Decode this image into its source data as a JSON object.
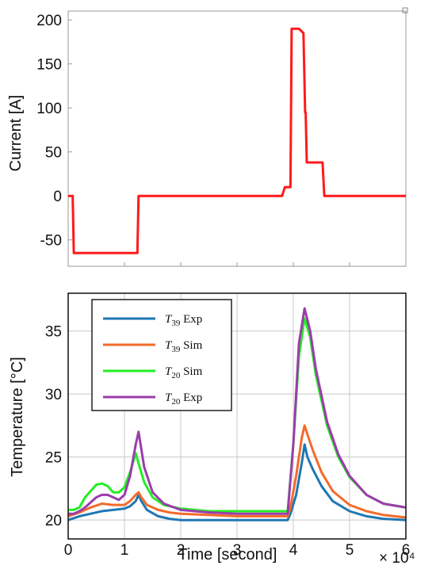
{
  "chart_data": [
    {
      "type": "line",
      "ylabel": "Current [A]",
      "xlim": [
        0,
        60000
      ],
      "ylim": [
        -80,
        210
      ],
      "yticks": [
        -50,
        0,
        50,
        100,
        150,
        200
      ],
      "grid": false,
      "colors": {
        "line": "#ff1a1a"
      },
      "series": [
        {
          "x": [
            0,
            800,
            1000,
            12300,
            12500,
            38000,
            38500,
            39500,
            39700,
            40800,
            41000,
            41800,
            42100,
            42200,
            42400,
            43000,
            43200,
            45200,
            45500,
            60000
          ],
          "y": [
            0,
            0,
            -65,
            -65,
            0,
            0,
            10,
            10,
            190,
            190,
            190,
            185,
            95,
            95,
            38,
            38,
            38,
            38,
            0,
            0
          ]
        }
      ]
    },
    {
      "type": "line",
      "xlabel": "Time [second]",
      "ylabel": "Temperature [°C]",
      "xlim": [
        0,
        60000
      ],
      "ylim": [
        18.5,
        38
      ],
      "xticks": [
        0,
        1,
        2,
        3,
        4,
        5,
        6
      ],
      "x_multiplier": "× 10⁴",
      "yticks": [
        20,
        25,
        30,
        35
      ],
      "grid": true,
      "legend": "top-left",
      "series": [
        {
          "name": "Exp",
          "subscript": "39",
          "color": "#1f77b4",
          "x": [
            0,
            2000,
            4000,
            6000,
            8000,
            10000,
            11000,
            12000,
            12500,
            13000,
            14000,
            16000,
            18000,
            20000,
            25000,
            30000,
            35000,
            39000,
            39500,
            40500,
            41500,
            42000,
            42500,
            43500,
            45000,
            47000,
            50000,
            53000,
            56000,
            60000
          ],
          "y": [
            20,
            20.3,
            20.5,
            20.7,
            20.8,
            20.9,
            21.1,
            21.5,
            22,
            21.5,
            20.8,
            20.3,
            20.1,
            20,
            20,
            20,
            20,
            20,
            20.5,
            22,
            24.5,
            26,
            25,
            24,
            22.7,
            21.5,
            20.7,
            20.3,
            20.1,
            20
          ]
        },
        {
          "name": "Sim",
          "subscript": "39",
          "color": "#f26b2a",
          "x": [
            0,
            2000,
            4000,
            6000,
            8000,
            10000,
            11000,
            12000,
            12500,
            13000,
            14000,
            16000,
            18000,
            20000,
            25000,
            30000,
            35000,
            39000,
            39500,
            40500,
            41500,
            42000,
            42500,
            43500,
            45000,
            47000,
            50000,
            53000,
            56000,
            60000
          ],
          "y": [
            20.3,
            20.6,
            21,
            21.3,
            21.2,
            21.2,
            21.5,
            22,
            22.2,
            21.8,
            21.2,
            20.8,
            20.6,
            20.5,
            20.4,
            20.3,
            20.3,
            20.3,
            21,
            23.5,
            26.5,
            27.5,
            26.8,
            25.5,
            23.8,
            22.3,
            21.2,
            20.7,
            20.4,
            20.2
          ]
        },
        {
          "name": "Sim",
          "subscript": "20",
          "color": "#22ee22",
          "x": [
            0,
            1000,
            2000,
            3000,
            4000,
            5000,
            6000,
            7000,
            8000,
            9000,
            10000,
            11000,
            12000,
            12500,
            13500,
            15000,
            17000,
            20000,
            25000,
            30000,
            35000,
            39000,
            40000,
            41000,
            42000,
            43000,
            44000,
            46000,
            48000,
            50000,
            53000,
            56000,
            60000
          ],
          "y": [
            20.8,
            20.8,
            21,
            21.8,
            22.3,
            22.8,
            22.9,
            22.7,
            22.2,
            22.2,
            22.6,
            23.8,
            25.3,
            24.5,
            23,
            21.8,
            21.2,
            20.9,
            20.7,
            20.7,
            20.7,
            20.7,
            26,
            33,
            36,
            34.5,
            31.5,
            27.5,
            25,
            23.4,
            22,
            21.3,
            21
          ]
        },
        {
          "name": "Exp",
          "subscript": "20",
          "color": "#9b3dab",
          "x": [
            0,
            1000,
            2000,
            3000,
            4000,
            5000,
            6000,
            7000,
            8000,
            9000,
            10000,
            11000,
            12000,
            12500,
            13500,
            15000,
            17000,
            20000,
            25000,
            30000,
            35000,
            39000,
            40000,
            41000,
            42000,
            43000,
            44000,
            46000,
            48000,
            50000,
            53000,
            56000,
            60000
          ],
          "y": [
            20.5,
            20.5,
            20.7,
            21,
            21.4,
            21.8,
            22,
            22,
            21.8,
            21.6,
            22,
            23.5,
            26,
            27,
            24.2,
            22.2,
            21.3,
            20.8,
            20.6,
            20.5,
            20.5,
            20.5,
            26,
            34,
            36.8,
            35,
            32,
            27.8,
            25.2,
            23.5,
            22,
            21.3,
            21
          ]
        }
      ]
    }
  ]
}
